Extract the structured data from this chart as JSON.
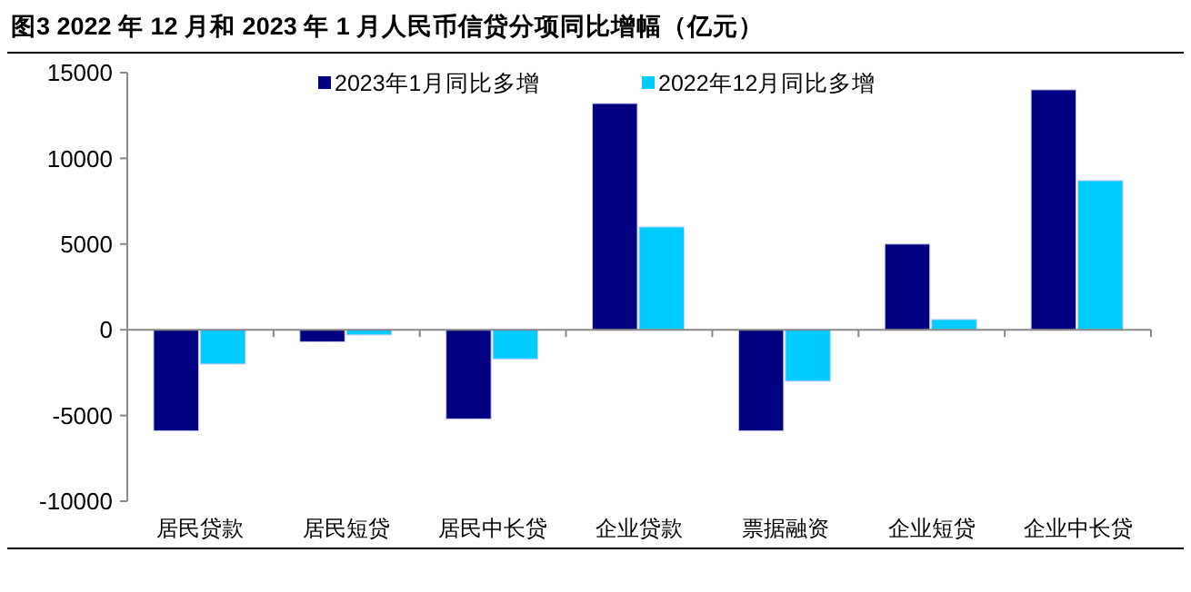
{
  "chart_data": {
    "type": "bar",
    "title": "图3  2022 年 12 月和 2023 年 1 月人民币信贷分项同比增幅（亿元）",
    "categories": [
      "居民贷款",
      "居民短贷",
      "居民中长贷",
      "企业贷款",
      "票据融资",
      "企业短贷",
      "企业中长贷"
    ],
    "series": [
      {
        "name": "2023年1月同比多增",
        "color": "#000080",
        "values": [
          -5900,
          -700,
          -5200,
          13200,
          -5900,
          5000,
          14000
        ]
      },
      {
        "name": "2022年12月同比多增",
        "color": "#00ccff",
        "values": [
          -2000,
          -300,
          -1700,
          6000,
          -3000,
          600,
          8700
        ]
      }
    ],
    "ylim": [
      -10000,
      15000
    ],
    "yticks": [
      -10000,
      -5000,
      0,
      5000,
      10000,
      15000
    ],
    "legend": "top"
  }
}
